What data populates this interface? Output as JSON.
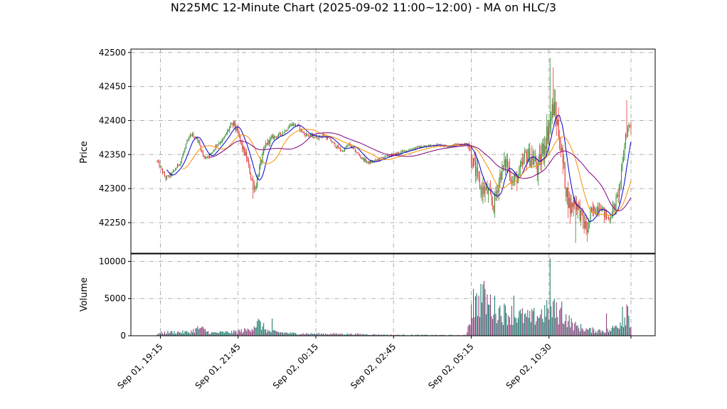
{
  "chart_data": {
    "type": "candlestick",
    "title": "N225MC 12-Minute Chart (2025-09-02 11:00~12:00) - MA on HLC/3",
    "price_panel": {
      "ylabel": "Price",
      "ylim": [
        42205,
        42505
      ],
      "yticks": [
        42250,
        42300,
        42350,
        42400,
        42450,
        42500
      ],
      "grid": true
    },
    "volume_panel": {
      "ylabel": "Volume",
      "ylim": [
        0,
        11000
      ],
      "yticks": [
        0,
        5000,
        10000
      ],
      "grid": true
    },
    "xaxis": {
      "ticks": [
        "Sep 01, 19:15",
        "Sep 01, 21:45",
        "Sep 02, 00:15",
        "Sep 02, 02:45",
        "Sep 02, 05:15",
        "Sep 02, 10:30"
      ],
      "tick_bar_index": [
        3,
        76,
        149,
        222,
        295,
        368
      ]
    },
    "bar_count": 446,
    "colors": {
      "up": "#2e8b2e",
      "down": "#e23a3a",
      "vol_up": "#1a7a6a",
      "vol_down": "#8e3a7a",
      "ma_fast": "#0000cc",
      "ma_mid": "#ff8c00",
      "ma_slow": "#800080"
    },
    "price_path_anchors": [
      [
        0,
        42340
      ],
      [
        8,
        42315
      ],
      [
        14,
        42322
      ],
      [
        22,
        42340
      ],
      [
        28,
        42368
      ],
      [
        32,
        42380
      ],
      [
        38,
        42372
      ],
      [
        44,
        42345
      ],
      [
        50,
        42350
      ],
      [
        56,
        42365
      ],
      [
        62,
        42372
      ],
      [
        68,
        42390
      ],
      [
        72,
        42395
      ],
      [
        76,
        42380
      ],
      [
        80,
        42360
      ],
      [
        84,
        42345
      ],
      [
        88,
        42318
      ],
      [
        92,
        42300
      ],
      [
        96,
        42330
      ],
      [
        102,
        42365
      ],
      [
        108,
        42375
      ],
      [
        114,
        42378
      ],
      [
        120,
        42385
      ],
      [
        126,
        42395
      ],
      [
        132,
        42392
      ],
      [
        138,
        42380
      ],
      [
        144,
        42378
      ],
      [
        150,
        42375
      ],
      [
        156,
        42378
      ],
      [
        162,
        42372
      ],
      [
        168,
        42362
      ],
      [
        174,
        42355
      ],
      [
        180,
        42365
      ],
      [
        186,
        42355
      ],
      [
        192,
        42345
      ],
      [
        198,
        42338
      ],
      [
        204,
        42340
      ],
      [
        212,
        42346
      ],
      [
        222,
        42350
      ],
      [
        232,
        42355
      ],
      [
        242,
        42360
      ],
      [
        252,
        42362
      ],
      [
        262,
        42365
      ],
      [
        272,
        42362
      ],
      [
        282,
        42365
      ],
      [
        292,
        42366
      ],
      [
        298,
        42330
      ],
      [
        304,
        42300
      ],
      [
        310,
        42295
      ],
      [
        316,
        42275
      ],
      [
        322,
        42320
      ],
      [
        328,
        42340
      ],
      [
        334,
        42310
      ],
      [
        340,
        42320
      ],
      [
        346,
        42350
      ],
      [
        352,
        42345
      ],
      [
        358,
        42328
      ],
      [
        364,
        42370
      ],
      [
        368,
        42390
      ],
      [
        372,
        42420
      ],
      [
        376,
        42395
      ],
      [
        380,
        42350
      ],
      [
        384,
        42300
      ],
      [
        388,
        42270
      ],
      [
        392,
        42285
      ],
      [
        396,
        42270
      ],
      [
        400,
        42250
      ],
      [
        404,
        42240
      ],
      [
        408,
        42265
      ],
      [
        412,
        42270
      ],
      [
        416,
        42278
      ],
      [
        420,
        42262
      ],
      [
        424,
        42255
      ],
      [
        428,
        42268
      ],
      [
        432,
        42285
      ],
      [
        436,
        42320
      ],
      [
        440,
        42380
      ],
      [
        444,
        42395
      ],
      [
        446,
        42388
      ]
    ],
    "volatility_anchors": [
      [
        0,
        4
      ],
      [
        60,
        4
      ],
      [
        76,
        7
      ],
      [
        95,
        9
      ],
      [
        110,
        4
      ],
      [
        200,
        3
      ],
      [
        290,
        2
      ],
      [
        295,
        18
      ],
      [
        340,
        16
      ],
      [
        370,
        28
      ],
      [
        380,
        22
      ],
      [
        420,
        10
      ],
      [
        440,
        14
      ],
      [
        446,
        10
      ]
    ],
    "volume_anchors": [
      [
        0,
        300
      ],
      [
        10,
        500
      ],
      [
        30,
        500
      ],
      [
        40,
        1100
      ],
      [
        50,
        400
      ],
      [
        70,
        500
      ],
      [
        85,
        800
      ],
      [
        95,
        1800
      ],
      [
        105,
        600
      ],
      [
        130,
        300
      ],
      [
        180,
        250
      ],
      [
        220,
        120
      ],
      [
        290,
        80
      ],
      [
        295,
        3500
      ],
      [
        305,
        5500
      ],
      [
        315,
        4000
      ],
      [
        325,
        3200
      ],
      [
        335,
        3000
      ],
      [
        350,
        2400
      ],
      [
        368,
        3500
      ],
      [
        380,
        3000
      ],
      [
        392,
        1400
      ],
      [
        405,
        800
      ],
      [
        425,
        700
      ],
      [
        438,
        2200
      ],
      [
        442,
        3800
      ],
      [
        446,
        900
      ]
    ],
    "volume_spikes": [
      [
        297,
        6300
      ],
      [
        306,
        6900
      ],
      [
        335,
        5400
      ],
      [
        369,
        10400
      ],
      [
        373,
        5000
      ],
      [
        380,
        4600
      ],
      [
        422,
        3000
      ],
      [
        437,
        3900
      ],
      [
        441,
        4200
      ],
      [
        108,
        2300
      ]
    ]
  }
}
